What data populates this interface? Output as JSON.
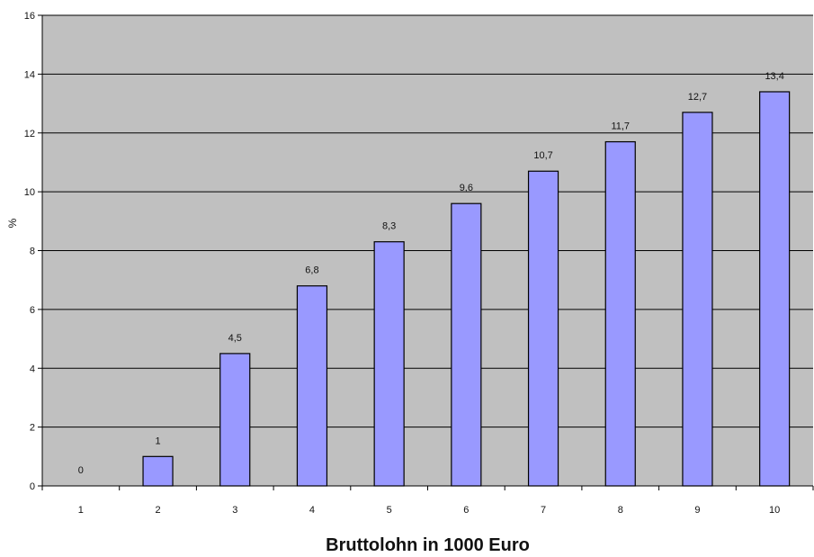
{
  "chart_data": {
    "type": "bar",
    "categories": [
      "1",
      "2",
      "3",
      "4",
      "5",
      "6",
      "7",
      "8",
      "9",
      "10"
    ],
    "values": [
      0,
      1,
      4.5,
      6.8,
      8.3,
      9.6,
      10.7,
      11.7,
      12.7,
      13.4
    ],
    "data_labels": [
      "0",
      "1",
      "4,5",
      "6,8",
      "8,3",
      "9,6",
      "10,7",
      "11,7",
      "12,7",
      "13,4"
    ],
    "y_ticks": [
      "0",
      "2",
      "4",
      "6",
      "8",
      "10",
      "12",
      "14",
      "16"
    ],
    "xlabel": "Bruttolohn in 1000 Euro",
    "ylabel": "%",
    "ylim": [
      0,
      16
    ],
    "grid": true,
    "legend": "none",
    "colors": {
      "bar_fill": "#9999ff",
      "bar_stroke": "#000000",
      "plot_background": "#c0c0c0",
      "gridline": "#000000"
    }
  }
}
